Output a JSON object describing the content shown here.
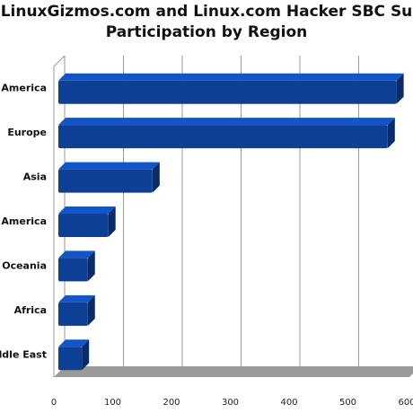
{
  "chart_data": {
    "type": "bar",
    "orientation": "horizontal",
    "title": [
      "LinuxGizmos.com and Linux.com Hacker SBC Su",
      "Participation by Region"
    ],
    "categories": [
      "America",
      "Europe",
      "Asia",
      "America",
      "Oceania",
      "Africa",
      "ddle East"
    ],
    "values": [
      575,
      560,
      160,
      85,
      50,
      50,
      40
    ],
    "color": "#0d3f94",
    "xlim": [
      0,
      600
    ],
    "xticks": [
      0,
      100,
      200,
      300,
      400,
      500,
      600
    ],
    "grid": true
  }
}
